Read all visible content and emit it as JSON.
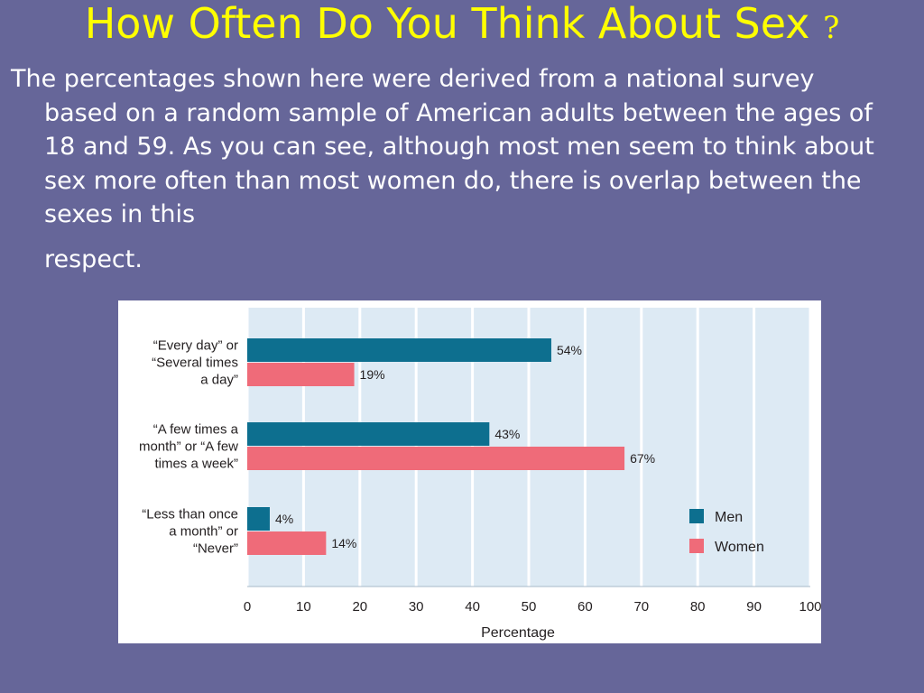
{
  "slide": {
    "title": "How Often Do You Think About Sex",
    "title_mark": "?",
    "body_main": "The percentages shown here were derived from a national survey based on a random sample of American adults between the ages of 18 and 59. As you can see, although most men seem to think about sex more often than most women do, there is overlap between the sexes in this",
    "body_last": "respect."
  },
  "colors": {
    "background": "#666699",
    "title": "#ffff00",
    "men": "#0d6f8f",
    "women": "#ef6b79",
    "plot_bg": "#ddeaf4"
  },
  "chart_data": {
    "type": "bar",
    "orientation": "horizontal",
    "categories": [
      [
        "“Every day” or",
        "“Several times",
        "a day”"
      ],
      [
        "“A few times a",
        "month” or “A few",
        "times a week”"
      ],
      [
        "“Less than once",
        "a month” or",
        "“Never”"
      ]
    ],
    "series": [
      {
        "name": "Men",
        "values": [
          54,
          43,
          4
        ],
        "labels": [
          "54%",
          "43%",
          "4%"
        ]
      },
      {
        "name": "Women",
        "values": [
          19,
          67,
          14
        ],
        "labels": [
          "19%",
          "67%",
          "14%"
        ]
      }
    ],
    "xlabel": "Percentage",
    "xlim": [
      0,
      100
    ],
    "xticks": [
      "0",
      "10",
      "20",
      "30",
      "40",
      "50",
      "60",
      "70",
      "80",
      "90",
      "100"
    ],
    "grid": "vertical",
    "legend": "bottom-right"
  }
}
